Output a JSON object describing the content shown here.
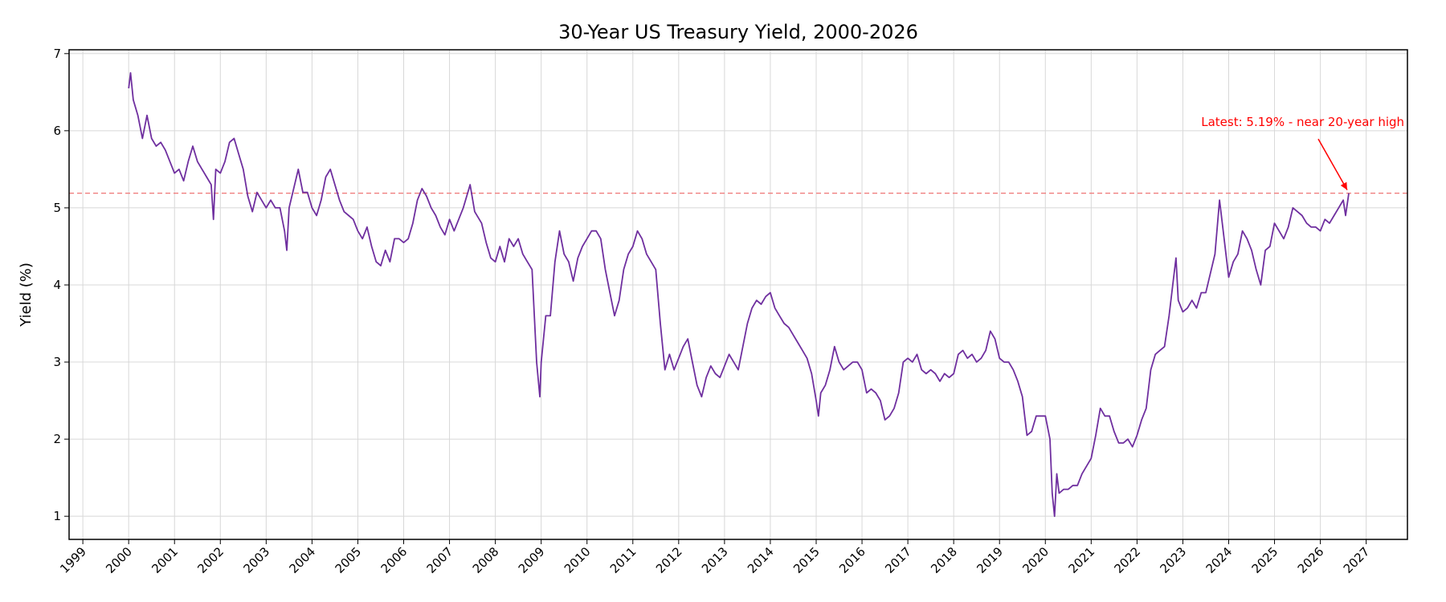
{
  "chart_data": {
    "type": "line",
    "title": "30-Year US Treasury Yield, 2000-2026",
    "xlabel": "",
    "ylabel": "Yield (%)",
    "xlim": [
      1998.7,
      2027.9
    ],
    "ylim": [
      0.7,
      7.05
    ],
    "yticks": [
      1,
      2,
      3,
      4,
      5,
      6,
      7
    ],
    "xticks": [
      "1999",
      "2000",
      "2001",
      "2002",
      "2003",
      "2004",
      "2005",
      "2006",
      "2007",
      "2008",
      "2009",
      "2010",
      "2011",
      "2012",
      "2013",
      "2014",
      "2015",
      "2016",
      "2017",
      "2018",
      "2019",
      "2020",
      "2021",
      "2022",
      "2023",
      "2024",
      "2025",
      "2026",
      "2027"
    ],
    "grid": true,
    "colors": {
      "line": "#6f2f9f",
      "reference": "#f08080",
      "annotation": "#ff0000",
      "grid": "#d8d8d8"
    },
    "series": [
      {
        "name": "",
        "points": [
          [
            2000.0,
            6.55
          ],
          [
            2000.04,
            6.75
          ],
          [
            2000.1,
            6.4
          ],
          [
            2000.2,
            6.2
          ],
          [
            2000.3,
            5.9
          ],
          [
            2000.4,
            6.2
          ],
          [
            2000.5,
            5.9
          ],
          [
            2000.6,
            5.8
          ],
          [
            2000.7,
            5.85
          ],
          [
            2000.8,
            5.75
          ],
          [
            2000.9,
            5.6
          ],
          [
            2001.0,
            5.45
          ],
          [
            2001.1,
            5.5
          ],
          [
            2001.2,
            5.35
          ],
          [
            2001.3,
            5.6
          ],
          [
            2001.4,
            5.8
          ],
          [
            2001.5,
            5.6
          ],
          [
            2001.6,
            5.5
          ],
          [
            2001.7,
            5.4
          ],
          [
            2001.8,
            5.3
          ],
          [
            2001.85,
            4.85
          ],
          [
            2001.9,
            5.5
          ],
          [
            2002.0,
            5.45
          ],
          [
            2002.1,
            5.6
          ],
          [
            2002.2,
            5.85
          ],
          [
            2002.3,
            5.9
          ],
          [
            2002.4,
            5.7
          ],
          [
            2002.5,
            5.5
          ],
          [
            2002.6,
            5.15
          ],
          [
            2002.7,
            4.95
          ],
          [
            2002.8,
            5.2
          ],
          [
            2002.9,
            5.1
          ],
          [
            2003.0,
            5.0
          ],
          [
            2003.1,
            5.1
          ],
          [
            2003.2,
            5.0
          ],
          [
            2003.3,
            5.0
          ],
          [
            2003.4,
            4.7
          ],
          [
            2003.45,
            4.45
          ],
          [
            2003.5,
            5.0
          ],
          [
            2003.6,
            5.25
          ],
          [
            2003.7,
            5.5
          ],
          [
            2003.8,
            5.2
          ],
          [
            2003.9,
            5.2
          ],
          [
            2004.0,
            5.0
          ],
          [
            2004.1,
            4.9
          ],
          [
            2004.2,
            5.1
          ],
          [
            2004.3,
            5.4
          ],
          [
            2004.4,
            5.5
          ],
          [
            2004.5,
            5.3
          ],
          [
            2004.6,
            5.1
          ],
          [
            2004.7,
            4.95
          ],
          [
            2004.8,
            4.9
          ],
          [
            2004.9,
            4.85
          ],
          [
            2005.0,
            4.7
          ],
          [
            2005.1,
            4.6
          ],
          [
            2005.2,
            4.75
          ],
          [
            2005.3,
            4.5
          ],
          [
            2005.4,
            4.3
          ],
          [
            2005.5,
            4.25
          ],
          [
            2005.6,
            4.45
          ],
          [
            2005.7,
            4.3
          ],
          [
            2005.8,
            4.6
          ],
          [
            2005.9,
            4.6
          ],
          [
            2006.0,
            4.55
          ],
          [
            2006.1,
            4.6
          ],
          [
            2006.2,
            4.8
          ],
          [
            2006.3,
            5.1
          ],
          [
            2006.4,
            5.25
          ],
          [
            2006.5,
            5.15
          ],
          [
            2006.6,
            5.0
          ],
          [
            2006.7,
            4.9
          ],
          [
            2006.8,
            4.75
          ],
          [
            2006.9,
            4.65
          ],
          [
            2007.0,
            4.85
          ],
          [
            2007.1,
            4.7
          ],
          [
            2007.2,
            4.85
          ],
          [
            2007.3,
            5.0
          ],
          [
            2007.45,
            5.3
          ],
          [
            2007.55,
            4.95
          ],
          [
            2007.7,
            4.8
          ],
          [
            2007.8,
            4.55
          ],
          [
            2007.9,
            4.35
          ],
          [
            2008.0,
            4.3
          ],
          [
            2008.1,
            4.5
          ],
          [
            2008.2,
            4.3
          ],
          [
            2008.3,
            4.6
          ],
          [
            2008.4,
            4.5
          ],
          [
            2008.5,
            4.6
          ],
          [
            2008.6,
            4.4
          ],
          [
            2008.7,
            4.3
          ],
          [
            2008.8,
            4.2
          ],
          [
            2008.9,
            3.0
          ],
          [
            2008.97,
            2.55
          ],
          [
            2009.0,
            3.0
          ],
          [
            2009.1,
            3.6
          ],
          [
            2009.2,
            3.6
          ],
          [
            2009.3,
            4.3
          ],
          [
            2009.4,
            4.7
          ],
          [
            2009.5,
            4.4
          ],
          [
            2009.6,
            4.3
          ],
          [
            2009.7,
            4.05
          ],
          [
            2009.8,
            4.35
          ],
          [
            2009.9,
            4.5
          ],
          [
            2010.0,
            4.6
          ],
          [
            2010.1,
            4.7
          ],
          [
            2010.2,
            4.7
          ],
          [
            2010.3,
            4.6
          ],
          [
            2010.4,
            4.2
          ],
          [
            2010.5,
            3.9
          ],
          [
            2010.6,
            3.6
          ],
          [
            2010.7,
            3.8
          ],
          [
            2010.8,
            4.2
          ],
          [
            2010.9,
            4.4
          ],
          [
            2011.0,
            4.5
          ],
          [
            2011.1,
            4.7
          ],
          [
            2011.2,
            4.6
          ],
          [
            2011.3,
            4.4
          ],
          [
            2011.4,
            4.3
          ],
          [
            2011.5,
            4.2
          ],
          [
            2011.6,
            3.5
          ],
          [
            2011.7,
            2.9
          ],
          [
            2011.8,
            3.1
          ],
          [
            2011.9,
            2.9
          ],
          [
            2012.0,
            3.05
          ],
          [
            2012.1,
            3.2
          ],
          [
            2012.2,
            3.3
          ],
          [
            2012.3,
            3.0
          ],
          [
            2012.4,
            2.7
          ],
          [
            2012.5,
            2.55
          ],
          [
            2012.6,
            2.8
          ],
          [
            2012.7,
            2.95
          ],
          [
            2012.8,
            2.85
          ],
          [
            2012.9,
            2.8
          ],
          [
            2013.0,
            2.95
          ],
          [
            2013.1,
            3.1
          ],
          [
            2013.2,
            3.0
          ],
          [
            2013.3,
            2.9
          ],
          [
            2013.4,
            3.2
          ],
          [
            2013.5,
            3.5
          ],
          [
            2013.6,
            3.7
          ],
          [
            2013.7,
            3.8
          ],
          [
            2013.8,
            3.75
          ],
          [
            2013.9,
            3.85
          ],
          [
            2014.0,
            3.9
          ],
          [
            2014.1,
            3.7
          ],
          [
            2014.2,
            3.6
          ],
          [
            2014.3,
            3.5
          ],
          [
            2014.4,
            3.45
          ],
          [
            2014.5,
            3.35
          ],
          [
            2014.6,
            3.25
          ],
          [
            2014.7,
            3.15
          ],
          [
            2014.8,
            3.05
          ],
          [
            2014.9,
            2.85
          ],
          [
            2015.0,
            2.5
          ],
          [
            2015.05,
            2.3
          ],
          [
            2015.1,
            2.6
          ],
          [
            2015.2,
            2.7
          ],
          [
            2015.3,
            2.9
          ],
          [
            2015.4,
            3.2
          ],
          [
            2015.5,
            3.0
          ],
          [
            2015.6,
            2.9
          ],
          [
            2015.7,
            2.95
          ],
          [
            2015.8,
            3.0
          ],
          [
            2015.9,
            3.0
          ],
          [
            2016.0,
            2.9
          ],
          [
            2016.1,
            2.6
          ],
          [
            2016.2,
            2.65
          ],
          [
            2016.3,
            2.6
          ],
          [
            2016.4,
            2.5
          ],
          [
            2016.5,
            2.25
          ],
          [
            2016.6,
            2.3
          ],
          [
            2016.7,
            2.4
          ],
          [
            2016.8,
            2.6
          ],
          [
            2016.9,
            3.0
          ],
          [
            2017.0,
            3.05
          ],
          [
            2017.1,
            3.0
          ],
          [
            2017.2,
            3.1
          ],
          [
            2017.3,
            2.9
          ],
          [
            2017.4,
            2.85
          ],
          [
            2017.5,
            2.9
          ],
          [
            2017.6,
            2.85
          ],
          [
            2017.7,
            2.75
          ],
          [
            2017.8,
            2.85
          ],
          [
            2017.9,
            2.8
          ],
          [
            2018.0,
            2.85
          ],
          [
            2018.1,
            3.1
          ],
          [
            2018.2,
            3.15
          ],
          [
            2018.3,
            3.05
          ],
          [
            2018.4,
            3.1
          ],
          [
            2018.5,
            3.0
          ],
          [
            2018.6,
            3.05
          ],
          [
            2018.7,
            3.15
          ],
          [
            2018.8,
            3.4
          ],
          [
            2018.9,
            3.3
          ],
          [
            2019.0,
            3.05
          ],
          [
            2019.1,
            3.0
          ],
          [
            2019.2,
            3.0
          ],
          [
            2019.3,
            2.9
          ],
          [
            2019.4,
            2.75
          ],
          [
            2019.5,
            2.55
          ],
          [
            2019.6,
            2.05
          ],
          [
            2019.7,
            2.1
          ],
          [
            2019.8,
            2.3
          ],
          [
            2019.9,
            2.3
          ],
          [
            2020.0,
            2.3
          ],
          [
            2020.1,
            2.0
          ],
          [
            2020.15,
            1.3
          ],
          [
            2020.2,
            1.0
          ],
          [
            2020.25,
            1.55
          ],
          [
            2020.3,
            1.3
          ],
          [
            2020.4,
            1.35
          ],
          [
            2020.5,
            1.35
          ],
          [
            2020.6,
            1.4
          ],
          [
            2020.7,
            1.4
          ],
          [
            2020.8,
            1.55
          ],
          [
            2020.9,
            1.65
          ],
          [
            2021.0,
            1.75
          ],
          [
            2021.1,
            2.05
          ],
          [
            2021.2,
            2.4
          ],
          [
            2021.3,
            2.3
          ],
          [
            2021.4,
            2.3
          ],
          [
            2021.5,
            2.1
          ],
          [
            2021.6,
            1.95
          ],
          [
            2021.7,
            1.95
          ],
          [
            2021.8,
            2.0
          ],
          [
            2021.9,
            1.9
          ],
          [
            2022.0,
            2.05
          ],
          [
            2022.1,
            2.25
          ],
          [
            2022.2,
            2.4
          ],
          [
            2022.3,
            2.9
          ],
          [
            2022.4,
            3.1
          ],
          [
            2022.5,
            3.15
          ],
          [
            2022.6,
            3.2
          ],
          [
            2022.7,
            3.6
          ],
          [
            2022.8,
            4.1
          ],
          [
            2022.85,
            4.35
          ],
          [
            2022.9,
            3.8
          ],
          [
            2023.0,
            3.65
          ],
          [
            2023.1,
            3.7
          ],
          [
            2023.2,
            3.8
          ],
          [
            2023.3,
            3.7
          ],
          [
            2023.4,
            3.9
          ],
          [
            2023.5,
            3.9
          ],
          [
            2023.6,
            4.15
          ],
          [
            2023.7,
            4.4
          ],
          [
            2023.8,
            5.1
          ],
          [
            2023.9,
            4.6
          ],
          [
            2024.0,
            4.1
          ],
          [
            2024.1,
            4.3
          ],
          [
            2024.2,
            4.4
          ],
          [
            2024.3,
            4.7
          ],
          [
            2024.4,
            4.6
          ],
          [
            2024.5,
            4.45
          ],
          [
            2024.6,
            4.2
          ],
          [
            2024.7,
            4.0
          ],
          [
            2024.8,
            4.45
          ],
          [
            2024.9,
            4.5
          ],
          [
            2025.0,
            4.8
          ],
          [
            2025.1,
            4.7
          ],
          [
            2025.2,
            4.6
          ],
          [
            2025.3,
            4.75
          ],
          [
            2025.4,
            5.0
          ],
          [
            2025.5,
            4.95
          ],
          [
            2025.6,
            4.9
          ],
          [
            2025.7,
            4.8
          ],
          [
            2025.8,
            4.75
          ],
          [
            2025.9,
            4.75
          ],
          [
            2026.0,
            4.7
          ],
          [
            2026.1,
            4.85
          ],
          [
            2026.2,
            4.8
          ],
          [
            2026.3,
            4.9
          ],
          [
            2026.4,
            5.0
          ],
          [
            2026.5,
            5.1
          ],
          [
            2026.55,
            4.9
          ],
          [
            2026.6,
            5.1
          ],
          [
            2026.62,
            5.19
          ]
        ]
      }
    ],
    "reference_line": {
      "y": 5.19,
      "style": "dashed"
    },
    "annotation": {
      "text": "Latest: 5.19% - near 20-year high",
      "point": [
        2026.62,
        5.19
      ],
      "text_pos": [
        2023.4,
        6.06
      ]
    }
  }
}
